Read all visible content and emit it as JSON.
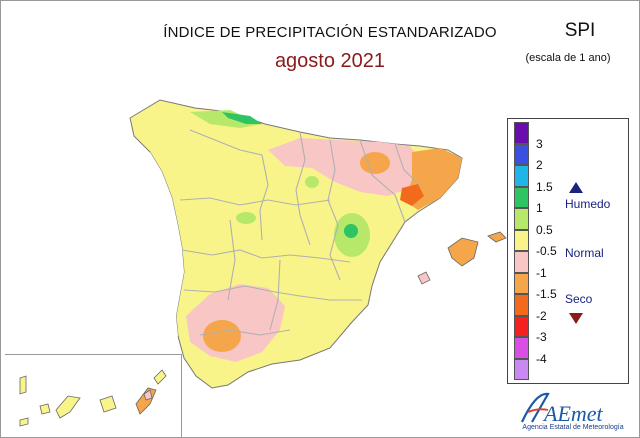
{
  "header": {
    "title": "ÍNDICE DE PRECIPITACIÓN ESTANDARIZADO",
    "subtitle": "agosto 2021",
    "index_name": "SPI",
    "scale_note": "(escala de 1 ano)"
  },
  "legend": {
    "ticks": [
      "3",
      "2",
      "1.5",
      "1",
      "0.5",
      "-0.5",
      "-1",
      "-1.5",
      "-2",
      "-3",
      "-4"
    ],
    "colors": [
      "#6a0dad",
      "#3b4fe0",
      "#1fb5e8",
      "#2ec463",
      "#b8e86a",
      "#f8f48a",
      "#f9c6c6",
      "#f5a54a",
      "#f26b1d",
      "#f52020",
      "#d94fe6",
      "#c88af0"
    ],
    "wet_label": "Humedo",
    "normal_label": "Normal",
    "dry_label": "Seco"
  },
  "logo": {
    "brand": "AEmet",
    "org_name": "Agencia Estatal de Meteorología"
  },
  "map_colors": {
    "base": "#f8f48a",
    "wet_light": "#b8e86a",
    "wet": "#2ec463",
    "dry_pink": "#f9c6c6",
    "dry_orange": "#f5a54a",
    "dry_strong": "#f26b1d",
    "borders": "#b0b0b0"
  }
}
